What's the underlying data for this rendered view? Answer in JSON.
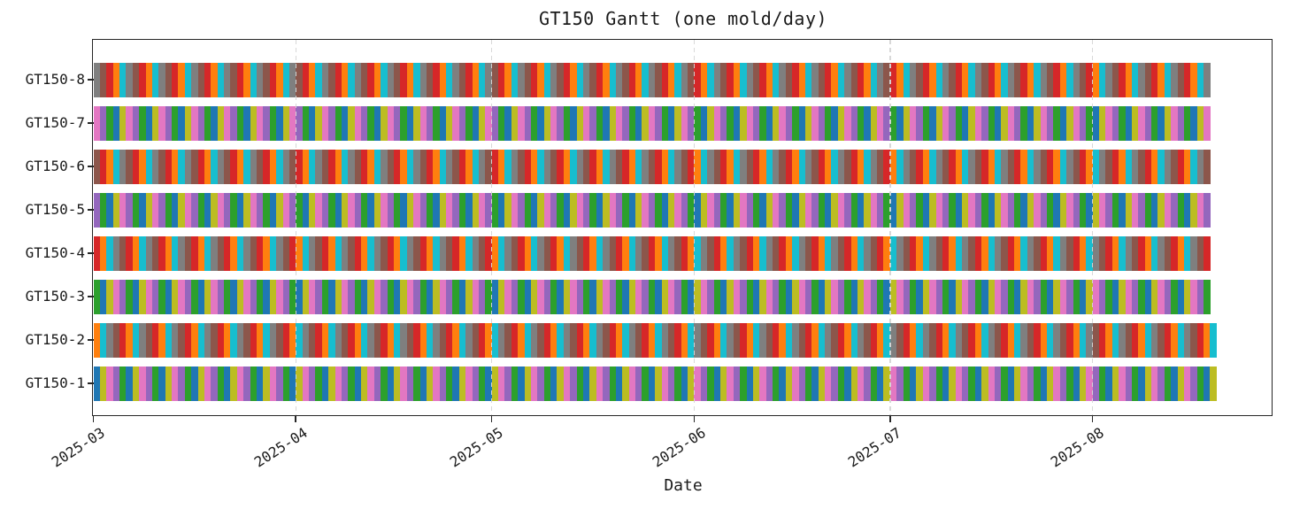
{
  "page": {
    "background": "#ffffff"
  },
  "chart_data": {
    "type": "gantt",
    "title": "GT150 Gantt (one mold/day)",
    "xlabel": "Date",
    "x_axis": {
      "start_date": "2025-03-01",
      "tick_labels": [
        "2025-03",
        "2025-04",
        "2025-05",
        "2025-06",
        "2025-07",
        "2025-08"
      ],
      "tick_day_offsets": [
        0,
        31,
        61,
        92,
        122,
        153
      ],
      "xlim_day_range": [
        0,
        181
      ],
      "tick_label_rotation_deg": 33
    },
    "y_axis": {
      "rows_top_to_bottom": [
        "GT150-8",
        "GT150-7",
        "GT150-6",
        "GT150-5",
        "GT150-4",
        "GT150-3",
        "GT150-2",
        "GT150-1"
      ]
    },
    "grid": {
      "axis": "x",
      "linestyle": "dashed",
      "color": "#d6d6d6"
    },
    "bar_unit_days": 1,
    "palette_tab10": [
      "#1f77b4",
      "#ff7f0e",
      "#2ca02c",
      "#d62728",
      "#9467bd",
      "#8c564b",
      "#e377c2",
      "#7f7f7f",
      "#bcbd22",
      "#17becf"
    ],
    "color_rule": "bar for day d (0-based from 2025-03-01) on mold m (1..8) uses palette_tab10[(8*d + m - 1) % 10]",
    "rows": [
      {
        "label": "GT150-1",
        "mold": 1,
        "start_day": 0,
        "num_days": 172,
        "start_date": "2025-03-01",
        "end_date": "2025-08-19",
        "color_cycle": [
          "#1f77b4",
          "#bcbd22",
          "#e377c2",
          "#9467bd",
          "#2ca02c"
        ]
      },
      {
        "label": "GT150-2",
        "mold": 2,
        "start_day": 0,
        "num_days": 172,
        "start_date": "2025-03-01",
        "end_date": "2025-08-19",
        "color_cycle": [
          "#ff7f0e",
          "#17becf",
          "#7f7f7f",
          "#8c564b",
          "#d62728"
        ]
      },
      {
        "label": "GT150-3",
        "mold": 3,
        "start_day": 0,
        "num_days": 171,
        "start_date": "2025-03-01",
        "end_date": "2025-08-18",
        "color_cycle": [
          "#2ca02c",
          "#1f77b4",
          "#bcbd22",
          "#e377c2",
          "#9467bd"
        ]
      },
      {
        "label": "GT150-4",
        "mold": 4,
        "start_day": 0,
        "num_days": 171,
        "start_date": "2025-03-01",
        "end_date": "2025-08-18",
        "color_cycle": [
          "#d62728",
          "#ff7f0e",
          "#17becf",
          "#7f7f7f",
          "#8c564b"
        ]
      },
      {
        "label": "GT150-5",
        "mold": 5,
        "start_day": 0,
        "num_days": 171,
        "start_date": "2025-03-01",
        "end_date": "2025-08-18",
        "color_cycle": [
          "#9467bd",
          "#2ca02c",
          "#1f77b4",
          "#bcbd22",
          "#e377c2"
        ]
      },
      {
        "label": "GT150-6",
        "mold": 6,
        "start_day": 0,
        "num_days": 171,
        "start_date": "2025-03-01",
        "end_date": "2025-08-18",
        "color_cycle": [
          "#8c564b",
          "#d62728",
          "#ff7f0e",
          "#17becf",
          "#7f7f7f"
        ]
      },
      {
        "label": "GT150-7",
        "mold": 7,
        "start_day": 0,
        "num_days": 171,
        "start_date": "2025-03-01",
        "end_date": "2025-08-18",
        "color_cycle": [
          "#e377c2",
          "#9467bd",
          "#2ca02c",
          "#1f77b4",
          "#bcbd22"
        ]
      },
      {
        "label": "GT150-8",
        "mold": 8,
        "start_day": 0,
        "num_days": 171,
        "start_date": "2025-03-01",
        "end_date": "2025-08-18",
        "color_cycle": [
          "#7f7f7f",
          "#8c564b",
          "#d62728",
          "#ff7f0e",
          "#17becf"
        ]
      }
    ]
  }
}
